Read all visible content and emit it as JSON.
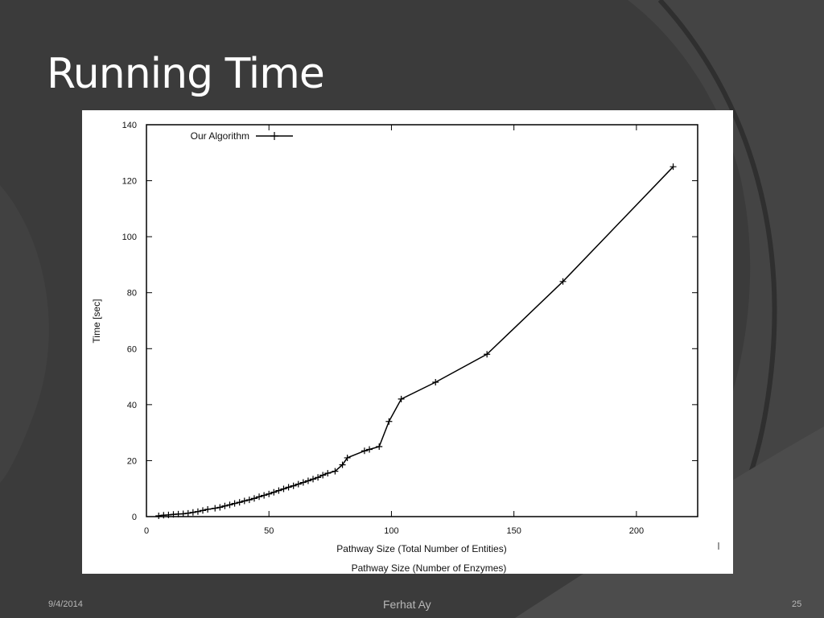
{
  "slide": {
    "title": "Running Time",
    "footer_date": "9/4/2014",
    "footer_author": "Ferhat Ay",
    "page_number": "25"
  },
  "chart_data": {
    "type": "line",
    "title": "",
    "xlabel": "Pathway Size (Total Number of Entities)",
    "xlabel2": "Pathway Size (Number of Enzymes)",
    "ylabel": "Time [sec]",
    "xlim": [
      0,
      225
    ],
    "ylim": [
      0,
      140
    ],
    "xticks": [
      0,
      50,
      100,
      150,
      200
    ],
    "yticks": [
      0,
      20,
      40,
      60,
      80,
      100,
      120,
      140
    ],
    "xtick_labels": [
      "0",
      "50",
      "100",
      "150",
      "200"
    ],
    "ytick_labels": [
      "0",
      "20",
      "40",
      "60",
      "80",
      "100",
      "120",
      "140"
    ],
    "grid": false,
    "legend_position": "top-left",
    "series": [
      {
        "name": "Our Algorithm",
        "color": "#000000",
        "marker": "plus",
        "points": [
          [
            5,
            0.3
          ],
          [
            7,
            0.5
          ],
          [
            9,
            0.6
          ],
          [
            11,
            0.8
          ],
          [
            13,
            0.9
          ],
          [
            15,
            1.0
          ],
          [
            17,
            1.2
          ],
          [
            19,
            1.5
          ],
          [
            21,
            1.8
          ],
          [
            23,
            2.2
          ],
          [
            25,
            2.6
          ],
          [
            28,
            3.0
          ],
          [
            30,
            3.3
          ],
          [
            32,
            3.8
          ],
          [
            34,
            4.2
          ],
          [
            36,
            4.7
          ],
          [
            38,
            5.1
          ],
          [
            40,
            5.6
          ],
          [
            42,
            6.0
          ],
          [
            44,
            6.5
          ],
          [
            46,
            7.1
          ],
          [
            48,
            7.6
          ],
          [
            50,
            8.1
          ],
          [
            52,
            8.7
          ],
          [
            54,
            9.3
          ],
          [
            56,
            9.9
          ],
          [
            58,
            10.5
          ],
          [
            60,
            11.0
          ],
          [
            62,
            11.6
          ],
          [
            64,
            12.2
          ],
          [
            66,
            12.8
          ],
          [
            68,
            13.4
          ],
          [
            70,
            14.0
          ],
          [
            72,
            14.8
          ],
          [
            74,
            15.5
          ],
          [
            77,
            16.2
          ],
          [
            80,
            18.5
          ],
          [
            82,
            21.0
          ],
          [
            89,
            23.5
          ],
          [
            91,
            24.0
          ],
          [
            95,
            25.0
          ],
          [
            99,
            34.0
          ],
          [
            104,
            42.0
          ],
          [
            118,
            48.0
          ],
          [
            139,
            58.0
          ],
          [
            170,
            84.0
          ],
          [
            215,
            125.0
          ]
        ]
      }
    ]
  },
  "colors": {
    "background": "#3a3a3a",
    "panel": "#ffffff",
    "line": "#000000",
    "title": "#ffffff",
    "footer": "#b8b8b8"
  }
}
